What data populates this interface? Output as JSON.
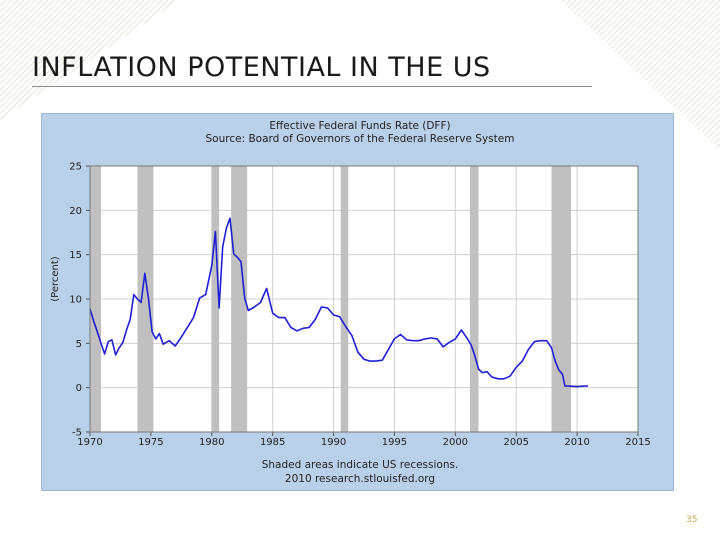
{
  "slide": {
    "title": "INFLATION POTENTIAL IN THE US",
    "page_number": "35"
  },
  "colors": {
    "chart_background": "#b9d0e8",
    "plot_area": "#ffffff",
    "series_line": "#1f1fd6",
    "recession_shading": "#c0c0c0",
    "grid": "#d0d0d0"
  },
  "chart_data": {
    "type": "line",
    "title": "Effective Federal Funds Rate (DFF)",
    "subtitle": "Source: Board of Governors of the Federal Reserve System",
    "ylabel": "(Percent)",
    "xlabel": "",
    "xlim": [
      1970,
      2015
    ],
    "ylim": [
      -5,
      25
    ],
    "x_ticks": [
      1970,
      1975,
      1980,
      1985,
      1990,
      1995,
      2000,
      2005,
      2010,
      2015
    ],
    "y_ticks": [
      -5,
      0,
      5,
      10,
      15,
      20,
      25
    ],
    "grid": true,
    "footnote": "Shaded areas indicate US recessions.",
    "credit": "2010 research.stlouisfed.org",
    "recessions": [
      [
        1969.9,
        1970.9
      ],
      [
        1973.9,
        1975.2
      ],
      [
        1980.0,
        1980.6
      ],
      [
        1981.6,
        1982.9
      ],
      [
        1990.6,
        1991.2
      ],
      [
        2001.2,
        2001.9
      ],
      [
        2007.9,
        2009.5
      ]
    ],
    "series": [
      {
        "x": [
          1970.0,
          1970.3,
          1970.6,
          1970.9,
          1971.2,
          1971.5,
          1971.8,
          1972.1,
          1972.4,
          1972.7,
          1973.0,
          1973.3,
          1973.6,
          1973.9,
          1974.2,
          1974.5,
          1974.8,
          1975.1,
          1975.4,
          1975.7,
          1976.0,
          1976.5,
          1977.0,
          1977.5,
          1978.0,
          1978.5,
          1979.0,
          1979.5,
          1980.0,
          1980.3,
          1980.6,
          1980.9,
          1981.2,
          1981.5,
          1981.8,
          1982.1,
          1982.4,
          1982.7,
          1983.0,
          1983.5,
          1984.0,
          1984.5,
          1985.0,
          1985.5,
          1986.0,
          1986.5,
          1987.0,
          1987.5,
          1988.0,
          1988.5,
          1989.0,
          1989.5,
          1990.0,
          1990.5,
          1991.0,
          1991.5,
          1992.0,
          1992.5,
          1993.0,
          1993.5,
          1994.0,
          1994.5,
          1995.0,
          1995.5,
          1996.0,
          1996.5,
          1997.0,
          1997.5,
          1998.0,
          1998.5,
          1999.0,
          1999.5,
          2000.0,
          2000.5,
          2001.0,
          2001.3,
          2001.6,
          2001.9,
          2002.2,
          2002.6,
          2003.0,
          2003.5,
          2004.0,
          2004.5,
          2005.0,
          2005.5,
          2006.0,
          2006.5,
          2007.0,
          2007.5,
          2007.9,
          2008.2,
          2008.5,
          2008.8,
          2009.0,
          2009.5,
          2010.0,
          2010.5,
          2010.9
        ],
        "values": [
          8.9,
          7.5,
          6.3,
          5.0,
          3.8,
          5.2,
          5.4,
          3.7,
          4.5,
          5.1,
          6.5,
          7.7,
          10.5,
          10.0,
          9.6,
          12.9,
          10.0,
          6.3,
          5.5,
          6.1,
          4.9,
          5.3,
          4.7,
          5.7,
          6.8,
          7.9,
          10.1,
          10.5,
          13.8,
          17.6,
          9.0,
          15.9,
          18.0,
          19.1,
          15.1,
          14.7,
          14.2,
          10.1,
          8.7,
          9.1,
          9.6,
          11.2,
          8.4,
          7.9,
          7.9,
          6.8,
          6.4,
          6.7,
          6.8,
          7.7,
          9.1,
          9.0,
          8.2,
          8.0,
          6.9,
          5.9,
          4.0,
          3.2,
          3.0,
          3.0,
          3.1,
          4.3,
          5.5,
          6.0,
          5.4,
          5.3,
          5.3,
          5.5,
          5.6,
          5.5,
          4.6,
          5.1,
          5.5,
          6.5,
          5.5,
          4.8,
          3.6,
          2.1,
          1.7,
          1.8,
          1.2,
          1.0,
          1.0,
          1.3,
          2.3,
          3.0,
          4.3,
          5.2,
          5.3,
          5.3,
          4.5,
          3.0,
          2.0,
          1.5,
          0.2,
          0.16,
          0.12,
          0.18,
          0.19
        ]
      }
    ]
  }
}
